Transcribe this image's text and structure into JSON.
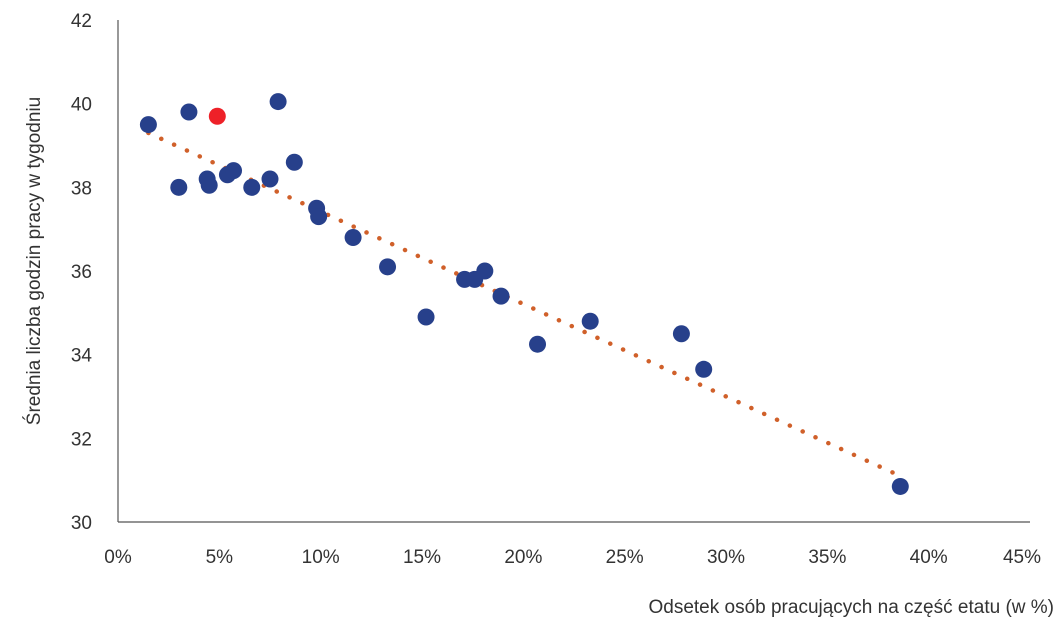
{
  "chart_data": {
    "type": "scatter",
    "title": "",
    "xlabel": "Odsetek osób pracujących na część etatu (w %)",
    "ylabel": "Średnia liczba godzin pracy w tygodniu",
    "xlim": [
      0,
      45
    ],
    "ylim": [
      30,
      42
    ],
    "x_ticks": [
      0,
      5,
      10,
      15,
      20,
      25,
      30,
      35,
      40,
      45
    ],
    "x_tick_labels": [
      "0%",
      "5%",
      "10%",
      "15%",
      "20%",
      "25%",
      "30%",
      "35%",
      "40%",
      "45%"
    ],
    "y_ticks": [
      30,
      32,
      34,
      36,
      38,
      40,
      42
    ],
    "y_tick_labels": [
      "30",
      "32",
      "34",
      "36",
      "38",
      "40",
      "42"
    ],
    "grid": false,
    "series": [
      {
        "color": "#27408b",
        "points": [
          [
            1.5,
            39.5
          ],
          [
            3.0,
            38.0
          ],
          [
            3.5,
            39.8
          ],
          [
            4.4,
            38.2
          ],
          [
            4.5,
            38.05
          ],
          [
            5.4,
            38.3
          ],
          [
            5.7,
            38.4
          ],
          [
            6.6,
            38.0
          ],
          [
            7.5,
            38.2
          ],
          [
            7.9,
            40.05
          ],
          [
            8.7,
            38.6
          ],
          [
            9.8,
            37.5
          ],
          [
            9.9,
            37.3
          ],
          [
            11.6,
            36.8
          ],
          [
            13.3,
            36.1
          ],
          [
            15.2,
            34.9
          ],
          [
            17.1,
            35.8
          ],
          [
            17.6,
            35.8
          ],
          [
            18.1,
            36.0
          ],
          [
            18.9,
            35.4
          ],
          [
            20.7,
            34.25
          ],
          [
            23.3,
            34.8
          ],
          [
            27.8,
            34.5
          ],
          [
            28.9,
            33.65
          ],
          [
            38.6,
            30.85
          ]
        ]
      },
      {
        "color": "#ee2128",
        "points": [
          [
            4.9,
            39.7
          ]
        ]
      }
    ],
    "trendline": {
      "type": "linear",
      "style": "dotted",
      "color": "#d0602a",
      "x_range": [
        1.5,
        38.6
      ],
      "y_values": [
        39.3,
        31.1
      ]
    }
  }
}
